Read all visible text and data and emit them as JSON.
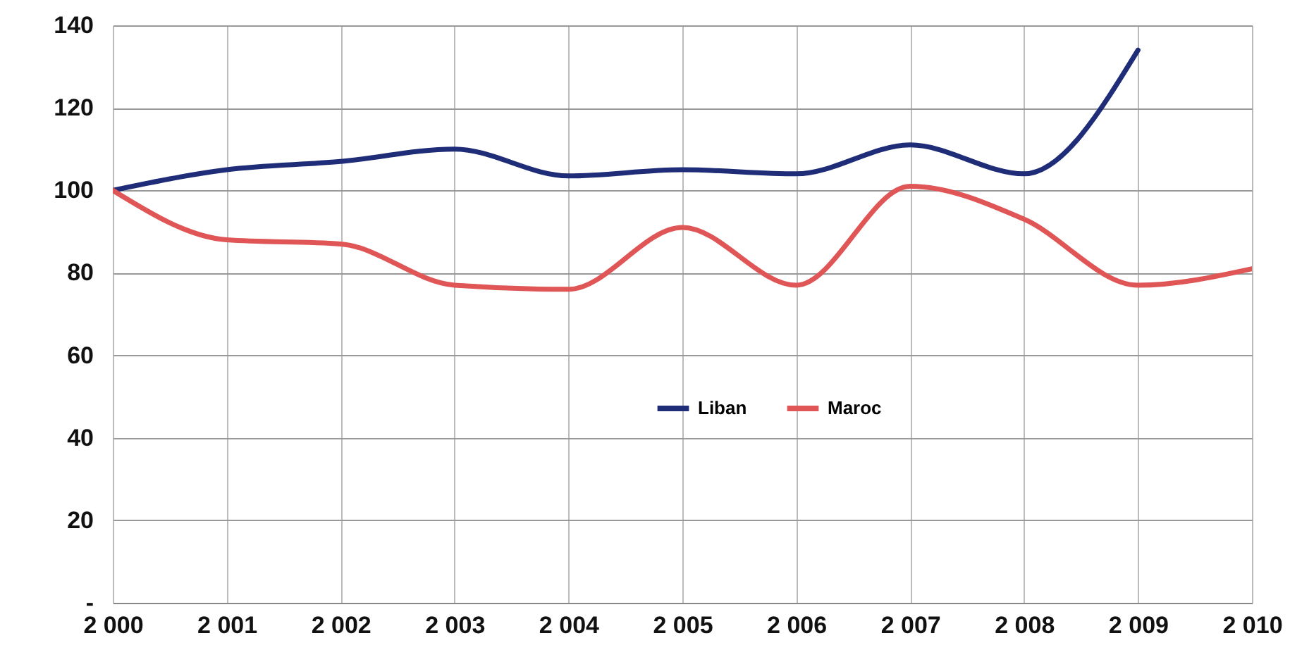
{
  "chart_data": {
    "type": "line",
    "x": [
      2000,
      2001,
      2002,
      2003,
      2004,
      2005,
      2006,
      2007,
      2008,
      2009,
      2010
    ],
    "series": [
      {
        "name": "Liban",
        "color": "#1f2d78",
        "values": [
          100,
          105,
          107,
          110,
          103.5,
          105,
          104,
          111,
          104,
          134,
          null
        ]
      },
      {
        "name": "Maroc",
        "color": "#e05656",
        "values": [
          100,
          88,
          87,
          77,
          76,
          91,
          77,
          101,
          93,
          77,
          81
        ]
      }
    ],
    "xlim": [
      2000,
      2010
    ],
    "xticks": [
      {
        "value": 2000,
        "label": "2 000"
      },
      {
        "value": 2001,
        "label": "2 001"
      },
      {
        "value": 2002,
        "label": "2 002"
      },
      {
        "value": 2003,
        "label": "2 003"
      },
      {
        "value": 2004,
        "label": "2 004"
      },
      {
        "value": 2005,
        "label": "2 005"
      },
      {
        "value": 2006,
        "label": "2 006"
      },
      {
        "value": 2007,
        "label": "2 007"
      },
      {
        "value": 2008,
        "label": "2 008"
      },
      {
        "value": 2009,
        "label": "2 009"
      },
      {
        "value": 2010,
        "label": "2 010"
      }
    ],
    "ylim": [
      0,
      140
    ],
    "yticks": [
      {
        "value": 0,
        "label": "-"
      },
      20,
      40,
      60,
      80,
      100,
      120,
      140
    ],
    "grid": true,
    "legend": "center",
    "marker": "none",
    "line_style": "solid"
  }
}
